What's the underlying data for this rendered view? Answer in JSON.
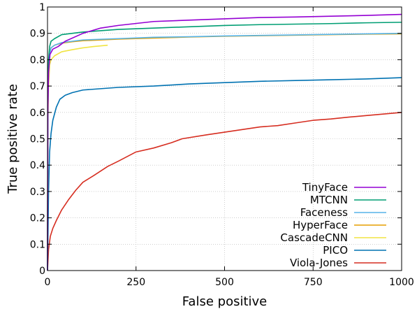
{
  "chart_data": {
    "type": "line",
    "xlabel": "False positive",
    "ylabel": "True positive rate",
    "xlim": [
      0,
      1000
    ],
    "ylim": [
      0,
      1
    ],
    "xticks": [
      0,
      250,
      500,
      750,
      1000
    ],
    "xtick_labels": [
      "0",
      "250",
      "500",
      "750",
      "1000"
    ],
    "yticks": [
      0,
      0.1,
      0.2,
      0.3,
      0.4,
      0.5,
      0.6,
      0.7,
      0.8,
      0.9,
      1
    ],
    "ytick_labels": [
      "0",
      "0.1",
      "0.2",
      "0.3",
      "0.4",
      "0.5",
      "0.6",
      "0.7",
      "0.8",
      "0.9",
      "1"
    ],
    "grid": true,
    "legend_position": "bottom-right",
    "series": [
      {
        "name": "TinyFace",
        "color": "#9400d3",
        "points": [
          [
            0,
            0
          ],
          [
            1,
            0.6
          ],
          [
            3,
            0.75
          ],
          [
            7,
            0.82
          ],
          [
            15,
            0.84
          ],
          [
            30,
            0.85
          ],
          [
            50,
            0.87
          ],
          [
            100,
            0.9
          ],
          [
            150,
            0.92
          ],
          [
            200,
            0.93
          ],
          [
            300,
            0.945
          ],
          [
            400,
            0.95
          ],
          [
            500,
            0.955
          ],
          [
            600,
            0.96
          ],
          [
            700,
            0.962
          ],
          [
            800,
            0.965
          ],
          [
            900,
            0.968
          ],
          [
            1000,
            0.972
          ]
        ]
      },
      {
        "name": "MTCNN",
        "color": "#009e73",
        "points": [
          [
            0,
            0
          ],
          [
            1,
            0.65
          ],
          [
            3,
            0.8
          ],
          [
            6,
            0.85
          ],
          [
            10,
            0.87
          ],
          [
            20,
            0.88
          ],
          [
            40,
            0.895
          ],
          [
            70,
            0.9
          ],
          [
            100,
            0.905
          ],
          [
            200,
            0.915
          ],
          [
            300,
            0.92
          ],
          [
            400,
            0.925
          ],
          [
            500,
            0.93
          ],
          [
            600,
            0.933
          ],
          [
            700,
            0.935
          ],
          [
            800,
            0.937
          ],
          [
            900,
            0.94
          ],
          [
            1000,
            0.942
          ]
        ]
      },
      {
        "name": "Faceness",
        "color": "#56b4e9",
        "points": [
          [
            0,
            0
          ],
          [
            1,
            0.6
          ],
          [
            3,
            0.76
          ],
          [
            6,
            0.82
          ],
          [
            10,
            0.845
          ],
          [
            20,
            0.855
          ],
          [
            40,
            0.865
          ],
          [
            70,
            0.87
          ],
          [
            100,
            0.875
          ],
          [
            200,
            0.88
          ],
          [
            300,
            0.885
          ],
          [
            400,
            0.887
          ],
          [
            500,
            0.89
          ],
          [
            600,
            0.892
          ],
          [
            700,
            0.894
          ],
          [
            800,
            0.896
          ],
          [
            900,
            0.898
          ],
          [
            1000,
            0.9
          ]
        ]
      },
      {
        "name": "HyperFace",
        "color": "#e69f00",
        "points": [
          [
            0,
            0
          ],
          [
            1,
            0.62
          ],
          [
            3,
            0.77
          ],
          [
            6,
            0.825
          ],
          [
            10,
            0.845
          ],
          [
            20,
            0.855
          ],
          [
            40,
            0.863
          ],
          [
            70,
            0.868
          ],
          [
            100,
            0.872
          ],
          [
            200,
            0.878
          ],
          [
            300,
            0.882
          ],
          [
            400,
            0.886
          ],
          [
            500,
            0.889
          ],
          [
            600,
            0.891
          ],
          [
            700,
            0.893
          ],
          [
            800,
            0.895
          ],
          [
            900,
            0.897
          ],
          [
            1000,
            0.898
          ]
        ]
      },
      {
        "name": "CascadeCNN",
        "color": "#f0e442",
        "points": [
          [
            0,
            0
          ],
          [
            1,
            0.55
          ],
          [
            3,
            0.7
          ],
          [
            6,
            0.78
          ],
          [
            10,
            0.8
          ],
          [
            20,
            0.815
          ],
          [
            40,
            0.83
          ],
          [
            70,
            0.838
          ],
          [
            100,
            0.845
          ],
          [
            130,
            0.85
          ],
          [
            170,
            0.855
          ]
        ]
      },
      {
        "name": "PICO",
        "color": "#0072b2",
        "points": [
          [
            0,
            0
          ],
          [
            3,
            0.3
          ],
          [
            6,
            0.45
          ],
          [
            10,
            0.52
          ],
          [
            15,
            0.57
          ],
          [
            25,
            0.62
          ],
          [
            35,
            0.65
          ],
          [
            50,
            0.665
          ],
          [
            70,
            0.675
          ],
          [
            100,
            0.685
          ],
          [
            150,
            0.69
          ],
          [
            200,
            0.695
          ],
          [
            300,
            0.7
          ],
          [
            400,
            0.708
          ],
          [
            500,
            0.713
          ],
          [
            600,
            0.718
          ],
          [
            700,
            0.721
          ],
          [
            800,
            0.724
          ],
          [
            900,
            0.727
          ],
          [
            1000,
            0.732
          ]
        ]
      },
      {
        "name": "Viola-Jones",
        "color": "#d62d20",
        "points": [
          [
            0,
            0
          ],
          [
            3,
            0.08
          ],
          [
            8,
            0.13
          ],
          [
            15,
            0.16
          ],
          [
            25,
            0.19
          ],
          [
            40,
            0.23
          ],
          [
            60,
            0.27
          ],
          [
            80,
            0.305
          ],
          [
            100,
            0.335
          ],
          [
            130,
            0.36
          ],
          [
            170,
            0.395
          ],
          [
            200,
            0.415
          ],
          [
            250,
            0.45
          ],
          [
            300,
            0.465
          ],
          [
            350,
            0.485
          ],
          [
            380,
            0.5
          ],
          [
            450,
            0.515
          ],
          [
            500,
            0.525
          ],
          [
            550,
            0.535
          ],
          [
            600,
            0.545
          ],
          [
            650,
            0.55
          ],
          [
            700,
            0.56
          ],
          [
            750,
            0.57
          ],
          [
            800,
            0.575
          ],
          [
            850,
            0.582
          ],
          [
            900,
            0.588
          ],
          [
            950,
            0.594
          ],
          [
            1000,
            0.6
          ]
        ]
      }
    ]
  }
}
